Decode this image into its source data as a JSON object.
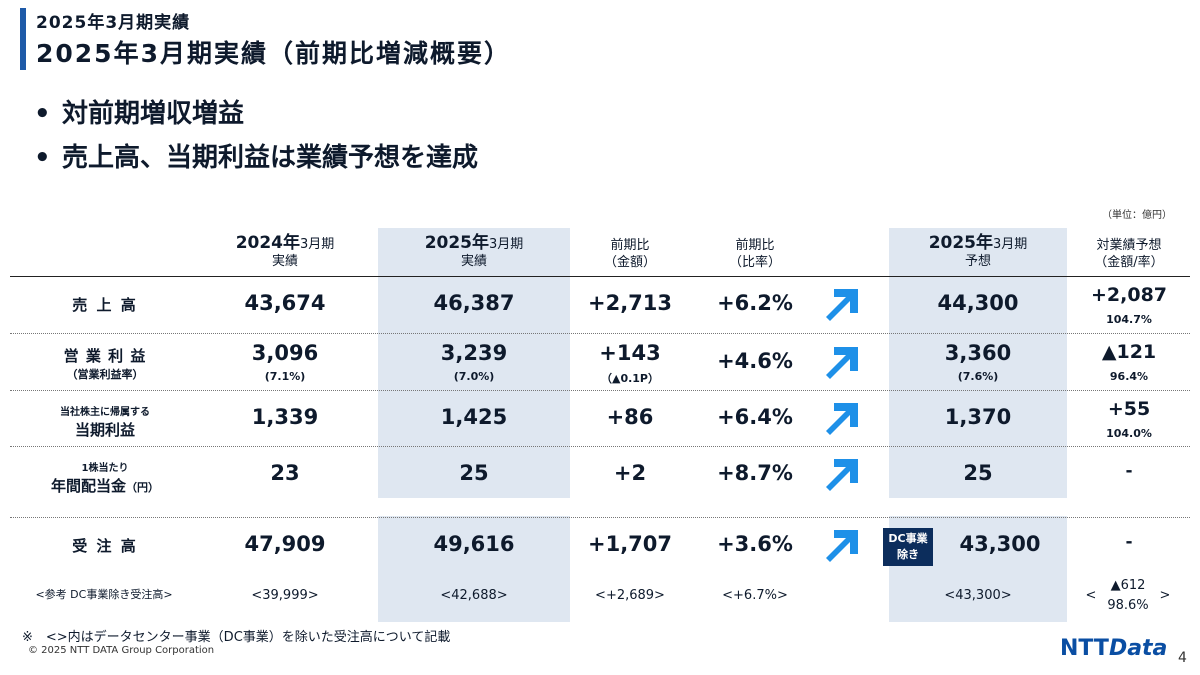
{
  "header": {
    "section_label": "2025年3月期実績",
    "title": "2025年3月期実績（前期比増減概要）"
  },
  "bullets": [
    "対前期増収増益",
    "売上高、当期利益は業績予想を達成"
  ],
  "unit_note": "（単位：億円）",
  "columns": {
    "fy2024": {
      "year": "2024年",
      "month": "3月期",
      "sub": "実績"
    },
    "fy2025": {
      "year": "2025年",
      "month": "3月期",
      "sub": "実績"
    },
    "yoy_amount": {
      "line1": "前期比",
      "line2": "（金額）"
    },
    "yoy_ratio": {
      "line1": "前期比",
      "line2": "（比率）"
    },
    "forecast": {
      "year": "2025年",
      "month": "3月期",
      "sub": "予想"
    },
    "vs_forecast": {
      "line1": "対業績予想",
      "line2": "（金額/率）"
    }
  },
  "rows": {
    "sales": {
      "label": "売 上 高",
      "fy2024": "43,674",
      "fy2025": "46,387",
      "yoy_amount": "+2,713",
      "yoy_ratio": "+6.2%",
      "forecast": "44,300",
      "vs_main": "+2,087",
      "vs_sub": "104.7%"
    },
    "operating_income": {
      "label": "営 業 利 益",
      "label_sub": "（営業利益率）",
      "fy2024": "3,096",
      "fy2024_sub": "(7.1%)",
      "fy2025": "3,239",
      "fy2025_sub": "(7.0%)",
      "yoy_amount": "+143",
      "yoy_amount_sub": "（▲0.1P）",
      "yoy_ratio": "+4.6%",
      "forecast": "3,360",
      "forecast_sub": "(7.6%)",
      "vs_main": "▲121",
      "vs_sub": "96.4%"
    },
    "net_income": {
      "label_top": "当社株主に帰属する",
      "label": "当期利益",
      "fy2024": "1,339",
      "fy2025": "1,425",
      "yoy_amount": "+86",
      "yoy_ratio": "+6.4%",
      "forecast": "1,370",
      "vs_main": "+55",
      "vs_sub": "104.0%"
    },
    "dividend": {
      "label_top": "1株当たり",
      "label": "年間配当金",
      "label_unit": "（円）",
      "fy2024": "23",
      "fy2025": "25",
      "yoy_amount": "+2",
      "yoy_ratio": "+8.7%",
      "forecast": "25",
      "vs_main": "-"
    },
    "orders": {
      "label": "受 注 高",
      "fy2024": "47,909",
      "fy2025": "49,616",
      "yoy_amount": "+1,707",
      "yoy_ratio": "+3.6%",
      "badge_line1": "DC事業",
      "badge_line2": "除き",
      "forecast": "43,300",
      "vs_main": "-"
    },
    "orders_ref": {
      "label": "<参考 DC事業除き受注高>",
      "fy2024": "<39,999>",
      "fy2025": "<42,688>",
      "yoy_amount": "<+2,689>",
      "yoy_ratio": "<+6.7%>",
      "forecast": "<43,300>",
      "vs_open": "<",
      "vs_main": "▲612",
      "vs_sub": "98.6%",
      "vs_close": ">"
    }
  },
  "arrow_icon": "up-right-arrow",
  "colors": {
    "accent": "#1e5aa8",
    "band": "#dfe7f1",
    "arrow": "#1e90e8",
    "badge": "#0c2d5c"
  },
  "footnote": "※　<>内はデータセンター事業（DC事業）を除いた受注高について記載",
  "copyright": "© 2025 NTT DATA Group Corporation",
  "logo": "NTTData",
  "page_number": "4"
}
